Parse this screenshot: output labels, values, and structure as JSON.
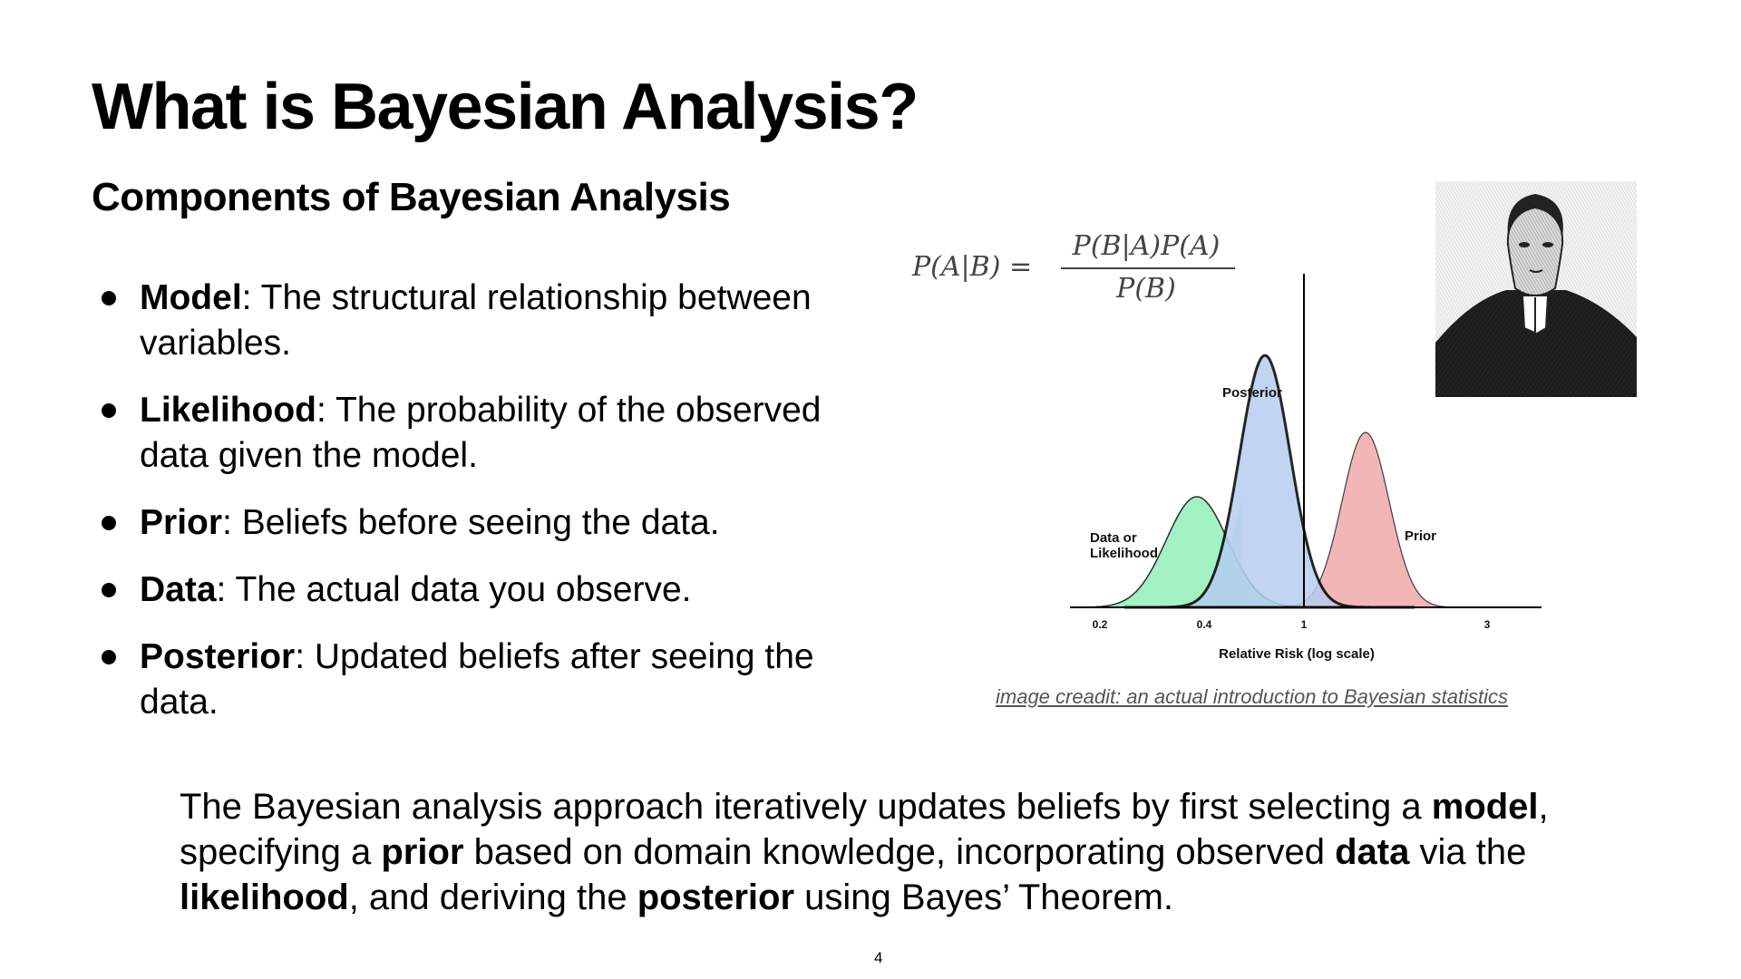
{
  "title": "What is Bayesian Analysis?",
  "subtitle": "Components of Bayesian Analysis",
  "bullets": [
    {
      "term": "Model",
      "definition": ": The structural relationship between variables."
    },
    {
      "term": "Likelihood",
      "definition": ": The probability of the observed data given the model."
    },
    {
      "term": "Prior",
      "definition": ": Beliefs before seeing the data."
    },
    {
      "term": "Data",
      "definition": ": The actual data you observe."
    },
    {
      "term": "Posterior",
      "definition": ": Updated beliefs after seeing the data."
    }
  ],
  "formula": {
    "lhs": "P(A|B) =",
    "numerator": "P(B|A)P(A)",
    "denominator": "P(B)"
  },
  "figure": {
    "labels": {
      "posterior": "Posterior",
      "likelihood_line1": "Data or",
      "likelihood_line2": "Likelihood",
      "prior": "Prior"
    },
    "x_ticks": [
      "0.2",
      "0.4",
      "1",
      "3"
    ],
    "x_axis_label": "Relative Risk (log scale)",
    "colors": {
      "likelihood": "#9ef2c0",
      "posterior": "#b7cdf0",
      "prior": "#f2b3b3",
      "overlap": "#82d6c8"
    },
    "credit": "image creadit: an actual introduction to Bayesian statistics"
  },
  "summary": {
    "p1": "The Bayesian analysis approach iteratively updates beliefs by first selecting a ",
    "b1": "model",
    "p2": ", specifying a ",
    "b2": "prior",
    "p3": " based on domain knowledge, incorporating observed ",
    "b3": "data",
    "p4": " via the ",
    "b4": "likelihood",
    "p5": ", and deriving the ",
    "b5": "posterior",
    "p6": " using Bayes’ Theorem."
  },
  "page_number": "4"
}
